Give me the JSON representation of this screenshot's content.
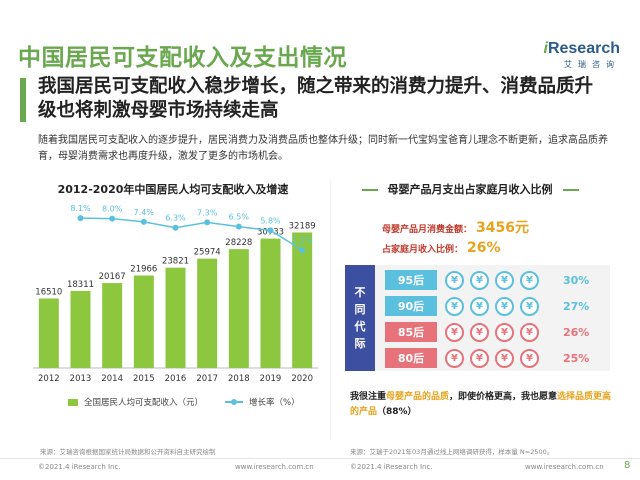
{
  "title": "中国居民可支配收入及支出情况",
  "logo": {
    "brand_i": "i",
    "brand_rest": "Research",
    "sub": "艾瑞咨询"
  },
  "subtitle": "我国居民可支配收入稳步增长，随之带来的消费力提升、消费品质升级也将刺激母婴市场持续走高",
  "body_text": "随着我国居民可支配收入的逐步提升，居民消费力及消费品质也整体升级；同时新一代宝妈宝爸育儿理念不断更新，追求高品质养育，母婴消费需求也再度升级，激发了更多的市场机会。",
  "chart_data": {
    "type": "bar",
    "title": "2012-2020年中国居民人均可支配收入及增速",
    "categories": [
      "2012",
      "2013",
      "2014",
      "2015",
      "2016",
      "2017",
      "2018",
      "2019",
      "2020"
    ],
    "series": [
      {
        "name": "全国居民人均可支配收入（元）",
        "type": "bar",
        "color": "#8dc63f",
        "values": [
          16510,
          18311,
          20167,
          21966,
          23821,
          25974,
          28228,
          30733,
          32189
        ]
      },
      {
        "name": "增长率（%）",
        "type": "line",
        "color": "#5bc0de",
        "values": [
          null,
          8.1,
          8.0,
          7.4,
          6.3,
          7.3,
          6.5,
          5.8,
          2.1
        ]
      }
    ],
    "bar_ylim": [
      0,
      38000
    ],
    "line_ylim": [
      -20,
      10
    ]
  },
  "legend": {
    "bar": "全国居民人均可支配收入（元）",
    "line": "增长率（%）"
  },
  "right": {
    "title": "母婴产品月支出占家庭月收入比例",
    "metric1_label": "母婴产品月消费金额：",
    "metric1_value": "3456元",
    "metric2_label": "占家庭月收入比例：",
    "metric2_value": "26%",
    "side_label": [
      "不",
      "同",
      "代",
      "际"
    ],
    "rows": [
      {
        "gen": "95后",
        "pct": "30%",
        "coin_color": "blue",
        "tag_color": "#5bc0de",
        "pct_color": "#5bc0de"
      },
      {
        "gen": "90后",
        "pct": "27%",
        "coin_color": "blue",
        "tag_color": "#5bc0de",
        "pct_color": "#5bc0de"
      },
      {
        "gen": "85后",
        "pct": "26%",
        "coin_color": "red",
        "tag_color": "#e8727a",
        "pct_color": "#e8727a"
      },
      {
        "gen": "80后",
        "pct": "25%",
        "coin_color": "red",
        "tag_color": "#e8727a",
        "pct_color": "#e8727a"
      }
    ],
    "coin_symbol": "¥",
    "conclusion_a": "我很注重",
    "conclusion_hl1": "母婴产品的品质",
    "conclusion_b": "，即使价格更高，我也愿意",
    "conclusion_hl2": "选择品质更高的产品",
    "conclusion_c": "（88%）"
  },
  "source_left": "来源：艾瑞咨询根据国家统计局数据和公开资料自主研究绘制",
  "source_right": "来源：艾瑞于2021年03月通过线上网络调研获得，样本量 N=2500。",
  "footer": {
    "copy": "©2021.4 iResearch Inc.",
    "url": "www.iresearch.com.cn",
    "page": "8"
  },
  "colors": {
    "accent_green": "#6aa84f",
    "bar_green": "#8dc63f",
    "line_blue": "#5bc0de",
    "navy": "#3d4fa0",
    "orange": "#e8a31c"
  }
}
